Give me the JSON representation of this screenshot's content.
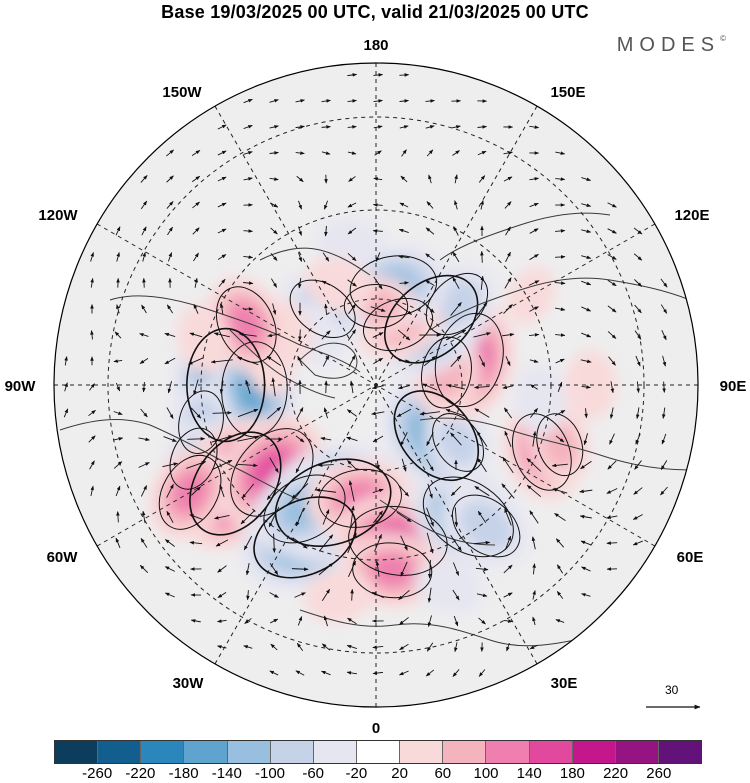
{
  "title": "Base 19/03/2025 00 UTC, valid 21/03/2025 00 UTC",
  "brand": "MODES",
  "brand_mark": "©",
  "longitude_labels": {
    "top": "180",
    "bottom": "0",
    "left": "90W",
    "right": "90E",
    "upper_left_1": "150W",
    "upper_left_2": "120W",
    "upper_right_1": "150E",
    "upper_right_2": "120E",
    "lower_left_1": "60W",
    "lower_left_2": "30W",
    "lower_right_1": "60E",
    "lower_right_2": "30E"
  },
  "wind_scale": {
    "value": "30"
  },
  "colorbar": {
    "colors": [
      "#0c3d5c",
      "#125f8f",
      "#2a86bb",
      "#5ea4cf",
      "#98bfe0",
      "#c5d2e8",
      "#e6e6f1",
      "#ffffff",
      "#f9dada",
      "#f4b3bd",
      "#ef7fae",
      "#e2489e",
      "#c4178c",
      "#951481",
      "#63127a"
    ],
    "ticks": [
      "-260",
      "-220",
      "-180",
      "-140",
      "-100",
      "-60",
      "-20",
      "20",
      "60",
      "100",
      "140",
      "180",
      "220",
      "260"
    ]
  },
  "anomaly_cells": [
    {
      "lon": -90,
      "lat": 48,
      "value": -185
    },
    {
      "lon": -88,
      "lat": 56,
      "value": -140
    },
    {
      "lon": -78,
      "lat": 40,
      "value": -60
    },
    {
      "lon": -68,
      "lat": 35,
      "value": -60
    },
    {
      "lon": -55,
      "lat": 42,
      "value": 185
    },
    {
      "lon": -50,
      "lat": 52,
      "value": 150
    },
    {
      "lon": -60,
      "lat": 30,
      "value": 100
    },
    {
      "lon": -100,
      "lat": 60,
      "value": 20
    },
    {
      "lon": -25,
      "lat": 43,
      "value": -170
    },
    {
      "lon": -20,
      "lat": 55,
      "value": -200
    },
    {
      "lon": -30,
      "lat": 50,
      "value": -120
    },
    {
      "lon": -8,
      "lat": 58,
      "value": 110
    },
    {
      "lon": 8,
      "lat": 46,
      "value": 150
    },
    {
      "lon": 5,
      "lat": 38,
      "value": 100
    },
    {
      "lon": 35,
      "lat": 45,
      "value": -150
    },
    {
      "lon": 38,
      "lat": 40,
      "value": -90
    },
    {
      "lon": 50,
      "lat": 68,
      "value": -155
    },
    {
      "lon": 55,
      "lat": 62,
      "value": -60
    },
    {
      "lon": 68,
      "lat": 40,
      "value": 100
    },
    {
      "lon": 72,
      "lat": 36,
      "value": 60
    },
    {
      "lon": 85,
      "lat": 44,
      "value": -40
    },
    {
      "lon": 105,
      "lat": 63,
      "value": 140
    },
    {
      "lon": 100,
      "lat": 70,
      "value": 80
    },
    {
      "lon": 140,
      "lat": 66,
      "value": -165
    },
    {
      "lon": 135,
      "lat": 58,
      "value": -80
    },
    {
      "lon": 160,
      "lat": 72,
      "value": 80
    },
    {
      "lon": 170,
      "lat": 62,
      "value": -120
    },
    {
      "lon": 180,
      "lat": 68,
      "value": 60
    },
    {
      "lon": -145,
      "lat": 64,
      "value": -80
    },
    {
      "lon": -130,
      "lat": 68,
      "value": -40
    },
    {
      "lon": -170,
      "lat": 50,
      "value": -40
    },
    {
      "lon": -120,
      "lat": 60,
      "value": 40
    },
    {
      "lon": -115,
      "lat": 50,
      "value": 100
    },
    {
      "lon": -105,
      "lat": 40,
      "value": 40
    },
    {
      "lon": -160,
      "lat": 60,
      "value": 40
    },
    {
      "lon": -10,
      "lat": 30,
      "value": 40
    },
    {
      "lon": 20,
      "lat": 30,
      "value": -40
    },
    {
      "lon": 90,
      "lat": 30,
      "value": 40
    },
    {
      "lon": 120,
      "lat": 40,
      "value": 20
    }
  ]
}
